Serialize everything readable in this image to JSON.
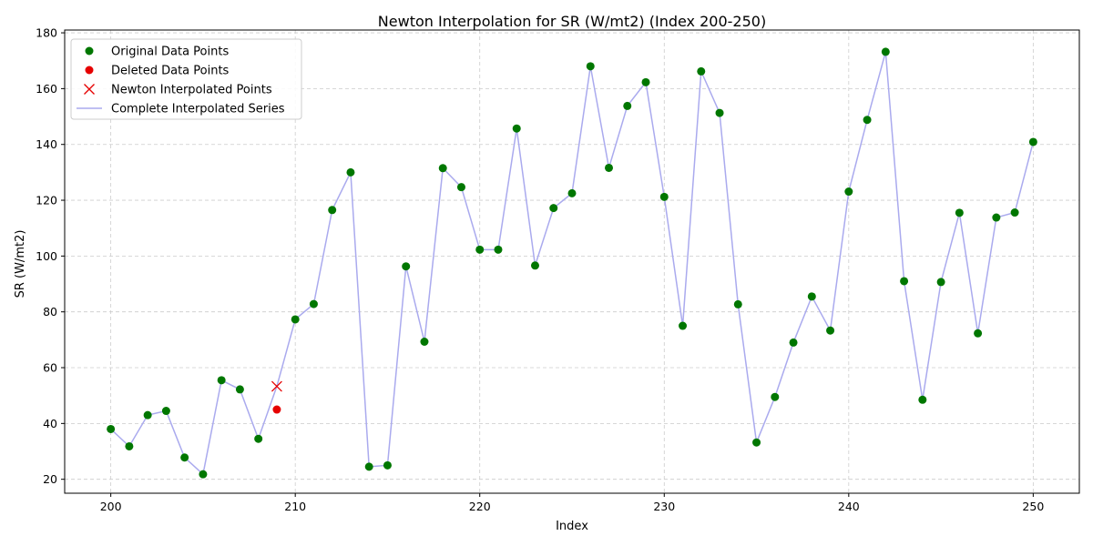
{
  "chart_data": {
    "type": "line",
    "title": "Newton Interpolation for SR (W/mt2) (Index 200-250)",
    "xlabel": "Index",
    "ylabel": "SR (W/mt2)",
    "xlim": [
      197.5,
      252.5
    ],
    "ylim": [
      15,
      181
    ],
    "xticks": [
      200,
      210,
      220,
      230,
      240,
      250
    ],
    "yticks": [
      20,
      40,
      60,
      80,
      100,
      120,
      140,
      160,
      180
    ],
    "grid": true,
    "legend_position": "top-left",
    "series": [
      {
        "name": "Original Data Points",
        "marker": "circle",
        "color": "#007700",
        "x": [
          200,
          201,
          202,
          203,
          204,
          205,
          206,
          207,
          208,
          210,
          211,
          212,
          213,
          214,
          215,
          216,
          217,
          218,
          219,
          220,
          221,
          222,
          223,
          224,
          225,
          226,
          227,
          228,
          229,
          230,
          231,
          232,
          233,
          234,
          235,
          236,
          237,
          238,
          239,
          240,
          241,
          242,
          243,
          244,
          245,
          246,
          247,
          248,
          249,
          250
        ],
        "y": [
          38,
          31.8,
          43,
          44.5,
          27.8,
          21.8,
          55.5,
          52.2,
          34.5,
          77.3,
          82.8,
          116.5,
          130,
          24.5,
          25,
          96.3,
          69.3,
          131.5,
          124.7,
          102.3,
          102.3,
          145.7,
          96.6,
          117.2,
          122.5,
          168,
          131.6,
          153.8,
          162.3,
          121.2,
          75,
          166.2,
          151.3,
          82.7,
          33.2,
          49.5,
          69,
          85.5,
          73.3,
          123.1,
          148.8,
          173.2,
          91,
          48.5,
          90.7,
          115.5,
          72.3,
          113.8,
          115.6,
          140.9
        ]
      },
      {
        "name": "Deleted Data Points",
        "marker": "circle",
        "color": "#e60000",
        "x": [
          209
        ],
        "y": [
          45
        ]
      },
      {
        "name": "Newton Interpolated Points",
        "marker": "x",
        "color": "#e60000",
        "x": [
          209
        ],
        "y": [
          53.3
        ]
      },
      {
        "name": "Complete Interpolated Series",
        "marker": "line",
        "color": "#aaaaee",
        "x": [
          200,
          201,
          202,
          203,
          204,
          205,
          206,
          207,
          208,
          209,
          210,
          211,
          212,
          213,
          214,
          215,
          216,
          217,
          218,
          219,
          220,
          221,
          222,
          223,
          224,
          225,
          226,
          227,
          228,
          229,
          230,
          231,
          232,
          233,
          234,
          235,
          236,
          237,
          238,
          239,
          240,
          241,
          242,
          243,
          244,
          245,
          246,
          247,
          248,
          249,
          250
        ],
        "y": [
          38,
          31.8,
          43,
          44.5,
          27.8,
          21.8,
          55.5,
          52.2,
          34.5,
          53.3,
          77.3,
          82.8,
          116.5,
          130,
          24.5,
          25,
          96.3,
          69.3,
          131.5,
          124.7,
          102.3,
          102.3,
          145.7,
          96.6,
          117.2,
          122.5,
          168,
          131.6,
          153.8,
          162.3,
          121.2,
          75,
          166.2,
          151.3,
          82.7,
          33.2,
          49.5,
          69,
          85.5,
          73.3,
          123.1,
          148.8,
          173.2,
          91,
          48.5,
          90.7,
          115.5,
          72.3,
          113.8,
          115.6,
          140.9
        ]
      }
    ]
  }
}
